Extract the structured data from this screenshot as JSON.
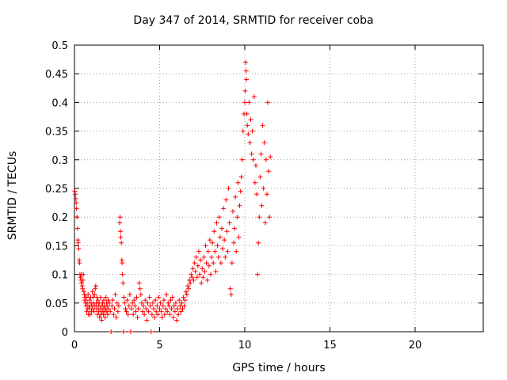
{
  "chart_data": {
    "type": "scatter",
    "title": "Day 347 of 2014, SRMTID for receiver coba",
    "xlabel": "GPS time / hours",
    "ylabel": "SRMTID / TECUs",
    "xlim": [
      0,
      24
    ],
    "ylim": [
      0,
      0.5
    ],
    "x_ticks": [
      0,
      5,
      10,
      15,
      20
    ],
    "x_tick_labels": [
      "0",
      "5",
      "10",
      "15",
      "20"
    ],
    "y_ticks": [
      0,
      0.05,
      0.1,
      0.15,
      0.2,
      0.25,
      0.3,
      0.35,
      0.4,
      0.45,
      0.5
    ],
    "y_tick_labels": [
      "0",
      "0.05",
      "0.1",
      "0.15",
      "0.2",
      "0.25",
      "0.3",
      "0.35",
      "0.4",
      "0.45",
      "0.5"
    ],
    "grid": true,
    "marker": "+",
    "series": [
      {
        "color": "#ff0000",
        "points": [
          [
            0.02,
            0.245
          ],
          [
            0.05,
            0.24
          ],
          [
            0.08,
            0.232
          ],
          [
            0.1,
            0.225
          ],
          [
            0.12,
            0.215
          ],
          [
            0.15,
            0.2
          ],
          [
            0.18,
            0.18
          ],
          [
            0.2,
            0.16
          ],
          [
            0.22,
            0.155
          ],
          [
            0.25,
            0.145
          ],
          [
            0.28,
            0.125
          ],
          [
            0.3,
            0.12
          ],
          [
            0.32,
            0.1
          ],
          [
            0.35,
            0.095
          ],
          [
            0.38,
            0.09
          ],
          [
            0.4,
            0.1
          ],
          [
            0.42,
            0.085
          ],
          [
            0.45,
            0.08
          ],
          [
            0.48,
            0.075
          ],
          [
            0.5,
            0.09
          ],
          [
            0.52,
            0.1
          ],
          [
            0.55,
            0.07
          ],
          [
            0.58,
            0.065
          ],
          [
            0.6,
            0.055
          ],
          [
            0.62,
            0.06
          ],
          [
            0.65,
            0.05
          ],
          [
            0.68,
            0.045
          ],
          [
            0.7,
            0.06
          ],
          [
            0.72,
            0.035
          ],
          [
            0.75,
            0.05
          ],
          [
            0.78,
            0.04
          ],
          [
            0.8,
            0.065
          ],
          [
            0.82,
            0.03
          ],
          [
            0.85,
            0.045
          ],
          [
            0.88,
            0.055
          ],
          [
            0.9,
            0.04
          ],
          [
            0.92,
            0.03
          ],
          [
            0.95,
            0.06
          ],
          [
            0.98,
            0.05
          ],
          [
            1.0,
            0.035
          ],
          [
            1.02,
            0.045
          ],
          [
            1.05,
            0.07
          ],
          [
            1.08,
            0.04
          ],
          [
            1.1,
            0.06
          ],
          [
            1.12,
            0.05
          ],
          [
            1.15,
            0.035
          ],
          [
            1.18,
            0.065
          ],
          [
            1.2,
            0.045
          ],
          [
            1.22,
            0.075
          ],
          [
            1.25,
            0.08
          ],
          [
            1.28,
            0.05
          ],
          [
            1.3,
            0.04
          ],
          [
            1.32,
            0.06
          ],
          [
            1.35,
            0.03
          ],
          [
            1.38,
            0.055
          ],
          [
            1.4,
            0.045
          ],
          [
            1.42,
            0.035
          ],
          [
            1.45,
            0.05
          ],
          [
            1.48,
            0.025
          ],
          [
            1.5,
            0.04
          ],
          [
            1.52,
            0.06
          ],
          [
            1.55,
            0.03
          ],
          [
            1.58,
            0.045
          ],
          [
            1.6,
            0.02
          ],
          [
            1.62,
            0.035
          ],
          [
            1.65,
            0.05
          ],
          [
            1.68,
            0.04
          ],
          [
            1.7,
            0.03
          ],
          [
            1.72,
            0.055
          ],
          [
            1.75,
            0.045
          ],
          [
            1.78,
            0.035
          ],
          [
            1.8,
            0.025
          ],
          [
            1.82,
            0.04
          ],
          [
            1.85,
            0.06
          ],
          [
            1.88,
            0.05
          ],
          [
            1.9,
            0.035
          ],
          [
            1.92,
            0.045
          ],
          [
            1.95,
            0.03
          ],
          [
            1.98,
            0.055
          ],
          [
            2.0,
            0.04
          ],
          [
            2.05,
            0.05
          ],
          [
            2.1,
            0.035
          ],
          [
            2.15,
            0.0
          ],
          [
            2.2,
            0.045
          ],
          [
            2.25,
            0.055
          ],
          [
            2.3,
            0.03
          ],
          [
            2.35,
            0.04
          ],
          [
            2.4,
            0.065
          ],
          [
            2.45,
            0.025
          ],
          [
            2.5,
            0.05
          ],
          [
            2.55,
            0.035
          ],
          [
            2.6,
            0.045
          ],
          [
            2.65,
            0.19
          ],
          [
            2.68,
            0.2
          ],
          [
            2.7,
            0.175
          ],
          [
            2.72,
            0.165
          ],
          [
            2.75,
            0.155
          ],
          [
            2.78,
            0.125
          ],
          [
            2.8,
            0.12
          ],
          [
            2.82,
            0.1
          ],
          [
            2.85,
            0.085
          ],
          [
            2.88,
            0.0
          ],
          [
            2.9,
            0.06
          ],
          [
            2.95,
            0.05
          ],
          [
            3.0,
            0.04
          ],
          [
            3.05,
            0.035
          ],
          [
            3.1,
            0.055
          ],
          [
            3.15,
            0.03
          ],
          [
            3.2,
            0.045
          ],
          [
            3.25,
            0.065
          ],
          [
            3.3,
            0.0
          ],
          [
            3.35,
            0.04
          ],
          [
            3.4,
            0.05
          ],
          [
            3.45,
            0.03
          ],
          [
            3.5,
            0.055
          ],
          [
            3.55,
            0.045
          ],
          [
            3.6,
            0.035
          ],
          [
            3.65,
            0.06
          ],
          [
            3.7,
            0.025
          ],
          [
            3.75,
            0.04
          ],
          [
            3.8,
            0.085
          ],
          [
            3.85,
            0.075
          ],
          [
            3.9,
            0.065
          ],
          [
            3.95,
            0.05
          ],
          [
            4.0,
            0.035
          ],
          [
            4.05,
            0.045
          ],
          [
            4.1,
            0.03
          ],
          [
            4.15,
            0.055
          ],
          [
            4.2,
            0.04
          ],
          [
            4.25,
            0.02
          ],
          [
            4.3,
            0.05
          ],
          [
            4.35,
            0.035
          ],
          [
            4.4,
            0.06
          ],
          [
            4.45,
            0.045
          ],
          [
            4.5,
            0.0
          ],
          [
            4.55,
            0.03
          ],
          [
            4.6,
            0.05
          ],
          [
            4.65,
            0.04
          ],
          [
            4.7,
            0.025
          ],
          [
            4.75,
            0.055
          ],
          [
            4.8,
            0.035
          ],
          [
            4.85,
            0.045
          ],
          [
            4.9,
            0.03
          ],
          [
            4.95,
            0.06
          ],
          [
            5.0,
            0.04
          ],
          [
            5.05,
            0.05
          ],
          [
            5.1,
            0.035
          ],
          [
            5.15,
            0.025
          ],
          [
            5.2,
            0.045
          ],
          [
            5.25,
            0.055
          ],
          [
            5.3,
            0.03
          ],
          [
            5.35,
            0.04
          ],
          [
            5.4,
            0.065
          ],
          [
            5.45,
            0.035
          ],
          [
            5.5,
            0.05
          ],
          [
            5.55,
            0.045
          ],
          [
            5.6,
            0.03
          ],
          [
            5.65,
            0.055
          ],
          [
            5.7,
            0.04
          ],
          [
            5.75,
            0.06
          ],
          [
            5.8,
            0.025
          ],
          [
            5.85,
            0.045
          ],
          [
            5.9,
            0.035
          ],
          [
            5.95,
            0.05
          ],
          [
            6.0,
            0.02
          ],
          [
            6.05,
            0.04
          ],
          [
            6.1,
            0.03
          ],
          [
            6.15,
            0.055
          ],
          [
            6.2,
            0.045
          ],
          [
            6.25,
            0.035
          ],
          [
            6.3,
            0.05
          ],
          [
            6.35,
            0.04
          ],
          [
            6.4,
            0.06
          ],
          [
            6.45,
            0.045
          ],
          [
            6.5,
            0.055
          ],
          [
            6.55,
            0.07
          ],
          [
            6.6,
            0.065
          ],
          [
            6.65,
            0.08
          ],
          [
            6.7,
            0.075
          ],
          [
            6.75,
            0.09
          ],
          [
            6.8,
            0.085
          ],
          [
            6.85,
            0.1
          ],
          [
            6.9,
            0.095
          ],
          [
            6.95,
            0.11
          ],
          [
            7.0,
            0.09
          ],
          [
            7.05,
            0.12
          ],
          [
            7.1,
            0.105
          ],
          [
            7.15,
            0.13
          ],
          [
            7.2,
            0.095
          ],
          [
            7.25,
            0.115
          ],
          [
            7.3,
            0.14
          ],
          [
            7.35,
            0.1
          ],
          [
            7.4,
            0.125
          ],
          [
            7.45,
            0.085
          ],
          [
            7.5,
            0.11
          ],
          [
            7.55,
            0.095
          ],
          [
            7.6,
            0.13
          ],
          [
            7.65,
            0.105
          ],
          [
            7.7,
            0.15
          ],
          [
            7.75,
            0.12
          ],
          [
            7.8,
            0.09
          ],
          [
            7.85,
            0.14
          ],
          [
            7.9,
            0.115
          ],
          [
            7.95,
            0.16
          ],
          [
            8.0,
            0.1
          ],
          [
            8.05,
            0.13
          ],
          [
            8.1,
            0.155
          ],
          [
            8.15,
            0.12
          ],
          [
            8.2,
            0.175
          ],
          [
            8.25,
            0.14
          ],
          [
            8.3,
            0.105
          ],
          [
            8.35,
            0.19
          ],
          [
            8.4,
            0.15
          ],
          [
            8.45,
            0.13
          ],
          [
            8.5,
            0.2
          ],
          [
            8.55,
            0.165
          ],
          [
            8.6,
            0.12
          ],
          [
            8.65,
            0.18
          ],
          [
            8.7,
            0.145
          ],
          [
            8.75,
            0.215
          ],
          [
            8.8,
            0.16
          ],
          [
            8.85,
            0.13
          ],
          [
            8.9,
            0.23
          ],
          [
            8.95,
            0.175
          ],
          [
            9.0,
            0.14
          ],
          [
            9.05,
            0.25
          ],
          [
            9.1,
            0.19
          ],
          [
            9.15,
            0.075
          ],
          [
            9.2,
            0.065
          ],
          [
            9.25,
            0.12
          ],
          [
            9.3,
            0.21
          ],
          [
            9.35,
            0.155
          ],
          [
            9.4,
            0.18
          ],
          [
            9.45,
            0.235
          ],
          [
            9.5,
            0.14
          ],
          [
            9.55,
            0.2
          ],
          [
            9.6,
            0.26
          ],
          [
            9.65,
            0.165
          ],
          [
            9.7,
            0.22
          ],
          [
            9.75,
            0.245
          ],
          [
            9.8,
            0.27
          ],
          [
            9.85,
            0.3
          ],
          [
            9.9,
            0.35
          ],
          [
            9.95,
            0.38
          ],
          [
            10.0,
            0.4
          ],
          [
            10.02,
            0.42
          ],
          [
            10.05,
            0.47
          ],
          [
            10.08,
            0.455
          ],
          [
            10.1,
            0.44
          ],
          [
            10.12,
            0.38
          ],
          [
            10.15,
            0.36
          ],
          [
            10.2,
            0.345
          ],
          [
            10.25,
            0.4
          ],
          [
            10.3,
            0.33
          ],
          [
            10.35,
            0.37
          ],
          [
            10.4,
            0.31
          ],
          [
            10.45,
            0.35
          ],
          [
            10.5,
            0.3
          ],
          [
            10.55,
            0.41
          ],
          [
            10.6,
            0.26
          ],
          [
            10.65,
            0.29
          ],
          [
            10.7,
            0.24
          ],
          [
            10.75,
            0.1
          ],
          [
            10.8,
            0.155
          ],
          [
            10.85,
            0.2
          ],
          [
            10.9,
            0.27
          ],
          [
            10.95,
            0.31
          ],
          [
            11.0,
            0.22
          ],
          [
            11.05,
            0.36
          ],
          [
            11.1,
            0.25
          ],
          [
            11.15,
            0.33
          ],
          [
            11.2,
            0.19
          ],
          [
            11.25,
            0.3
          ],
          [
            11.3,
            0.24
          ],
          [
            11.35,
            0.4
          ],
          [
            11.4,
            0.28
          ],
          [
            11.45,
            0.2
          ],
          [
            11.5,
            0.305
          ]
        ]
      }
    ]
  }
}
